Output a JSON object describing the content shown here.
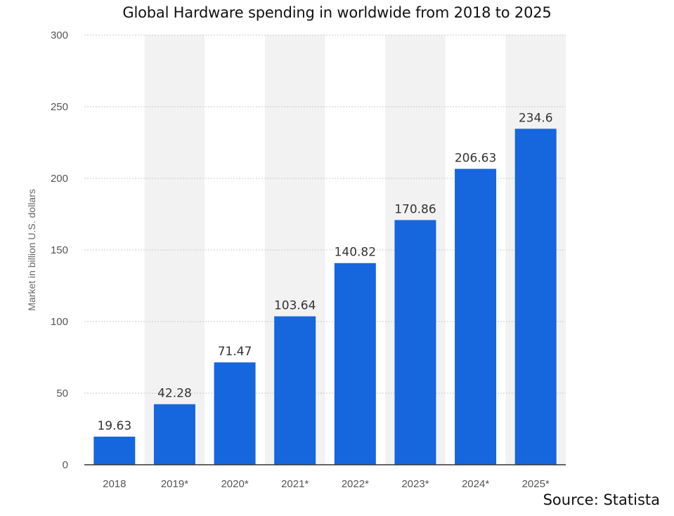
{
  "chart_data": {
    "type": "bar",
    "title": "Global Hardware spending in worldwide from 2018 to 2025",
    "xlabel": "",
    "ylabel": "Market in billion U.S. dollars",
    "categories": [
      "2018",
      "2019*",
      "2020*",
      "2021*",
      "2022*",
      "2023*",
      "2024*",
      "2025*"
    ],
    "values": [
      19.63,
      42.28,
      71.47,
      103.64,
      140.82,
      170.86,
      206.63,
      234.6
    ],
    "value_labels": [
      "19.63",
      "42.28",
      "71.47",
      "103.64",
      "140.82",
      "170.86",
      "206.63",
      "234.6"
    ],
    "ylim": [
      0,
      300
    ],
    "yticks": [
      0,
      50,
      100,
      150,
      200,
      250,
      300
    ],
    "grid": true,
    "bar_color": "#1666de",
    "band_color": "#f2f2f2"
  },
  "footer": {
    "source": "Source: Statista"
  }
}
